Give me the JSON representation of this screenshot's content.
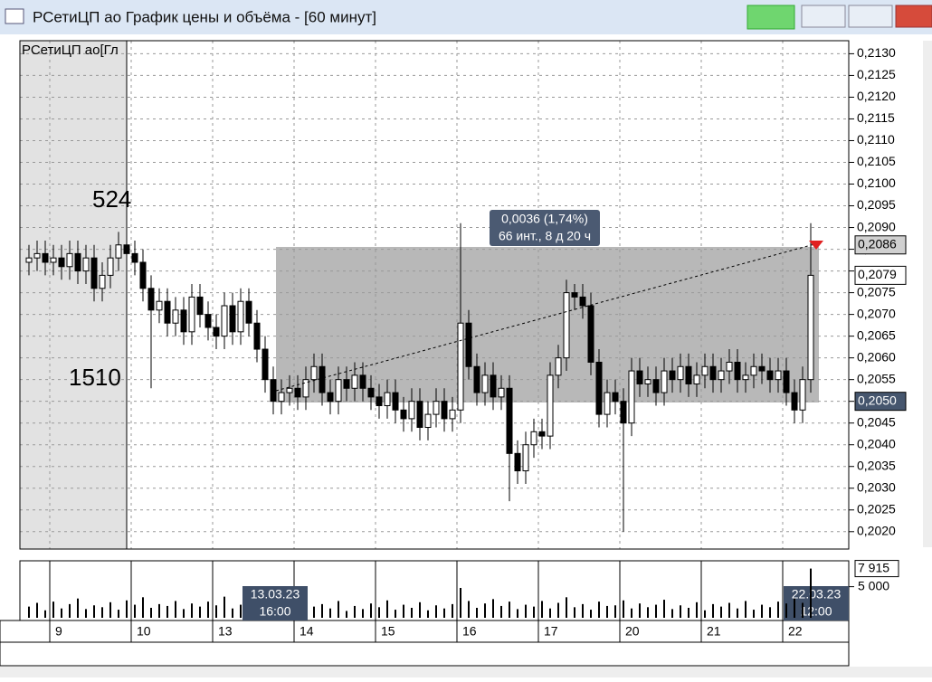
{
  "window": {
    "title": "РСетиЦП ао График цены и объёма - [60 минут]"
  },
  "chart_data": {
    "type": "candlestick",
    "legend": "РСетиЦП ао[Гл",
    "categories": [
      null,
      null,
      null,
      "9",
      null,
      null,
      null,
      null,
      null,
      null,
      null,
      null,
      null,
      "10",
      null,
      null,
      null,
      null,
      null,
      null,
      null,
      null,
      null,
      "13",
      null,
      null,
      null,
      null,
      null,
      null,
      null,
      null,
      null,
      "14",
      null,
      null,
      null,
      null,
      null,
      null,
      null,
      null,
      null,
      "15",
      null,
      null,
      null,
      null,
      null,
      null,
      null,
      null,
      null,
      "16",
      null,
      null,
      null,
      null,
      null,
      null,
      null,
      null,
      null,
      "17",
      null,
      null,
      null,
      null,
      null,
      null,
      null,
      null,
      null,
      "20",
      null,
      null,
      null,
      null,
      null,
      null,
      null,
      null,
      null,
      "21",
      null,
      null,
      null,
      null,
      null,
      null,
      null,
      null,
      null,
      "22",
      null,
      null,
      null
    ],
    "open": [
      0.2082,
      0.2083,
      0.2084,
      0.2082,
      0.2083,
      0.2081,
      0.2084,
      0.208,
      0.2083,
      0.2076,
      0.2079,
      0.2083,
      0.2086,
      0.2084,
      0.2082,
      0.2076,
      0.2071,
      0.2073,
      0.2068,
      0.2071,
      0.2066,
      0.2074,
      0.207,
      0.2067,
      0.2065,
      0.2072,
      0.2066,
      0.2073,
      0.2068,
      0.2062,
      0.2055,
      0.205,
      0.2052,
      0.2053,
      0.2051,
      0.2055,
      0.2058,
      0.2052,
      0.205,
      0.2055,
      0.2053,
      0.2056,
      0.2053,
      0.2051,
      0.2049,
      0.2052,
      0.2048,
      0.2046,
      0.205,
      0.2044,
      0.2047,
      0.205,
      0.2046,
      0.2048,
      0.2068,
      0.2058,
      0.2052,
      0.2056,
      0.2051,
      0.2053,
      0.2038,
      0.2034,
      0.204,
      0.2043,
      0.2042,
      0.2056,
      0.206,
      0.2075,
      0.2074,
      0.2072,
      0.2059,
      0.2047,
      0.2052,
      0.205,
      0.2045,
      0.2057,
      0.2054,
      0.2055,
      0.2052,
      0.2057,
      0.2055,
      0.2058,
      0.2054,
      0.2056,
      0.2058,
      0.2055,
      0.2057,
      0.2059,
      0.2055,
      0.2056,
      0.2058,
      0.2057,
      0.2055,
      0.2057,
      0.2052,
      0.2048,
      0.2055
    ],
    "high": [
      0.2086,
      0.2087,
      0.2087,
      0.2086,
      0.2086,
      0.2087,
      0.2087,
      0.2086,
      0.2086,
      0.2082,
      0.2086,
      0.2089,
      0.2089,
      0.2087,
      0.2085,
      0.2079,
      0.2076,
      0.2076,
      0.2074,
      0.2074,
      0.2077,
      0.2077,
      0.2073,
      0.207,
      0.2075,
      0.2075,
      0.2076,
      0.2076,
      0.2071,
      0.2065,
      0.2058,
      0.2055,
      0.2056,
      0.2056,
      0.2058,
      0.2061,
      0.2061,
      0.2055,
      0.2058,
      0.2058,
      0.2059,
      0.2059,
      0.2056,
      0.2054,
      0.2055,
      0.2055,
      0.2051,
      0.2053,
      0.2053,
      0.205,
      0.2053,
      0.2053,
      0.2051,
      0.2091,
      0.2071,
      0.2061,
      0.2059,
      0.2059,
      0.2056,
      0.2056,
      0.2041,
      0.2043,
      0.2046,
      0.2046,
      0.2059,
      0.2063,
      0.2078,
      0.2077,
      0.2077,
      0.2075,
      0.2062,
      0.2055,
      0.2055,
      0.2053,
      0.206,
      0.206,
      0.2058,
      0.2058,
      0.206,
      0.206,
      0.2061,
      0.2061,
      0.2059,
      0.2061,
      0.2061,
      0.206,
      0.2062,
      0.2062,
      0.2059,
      0.2061,
      0.2061,
      0.206,
      0.206,
      0.206,
      0.2055,
      0.2058,
      0.2091
    ],
    "low": [
      0.2079,
      0.208,
      0.2079,
      0.2079,
      0.2078,
      0.2078,
      0.2077,
      0.2077,
      0.2073,
      0.2073,
      0.2076,
      0.208,
      0.2081,
      0.2079,
      0.2073,
      0.2053,
      0.2068,
      0.2065,
      0.2065,
      0.2063,
      0.2063,
      0.2067,
      0.2064,
      0.2062,
      0.2062,
      0.2063,
      0.2063,
      0.2065,
      0.2059,
      0.2052,
      0.2047,
      0.2047,
      0.2049,
      0.2048,
      0.2048,
      0.2052,
      0.2049,
      0.2047,
      0.2047,
      0.205,
      0.205,
      0.205,
      0.2048,
      0.2046,
      0.2046,
      0.2045,
      0.2043,
      0.2043,
      0.2041,
      0.2041,
      0.2044,
      0.2043,
      0.2043,
      0.2045,
      0.2055,
      0.2049,
      0.2049,
      0.2048,
      0.2048,
      0.2027,
      0.2031,
      0.2031,
      0.2037,
      0.2039,
      0.2039,
      0.2053,
      0.2057,
      0.2071,
      0.2069,
      0.2056,
      0.2044,
      0.2044,
      0.2047,
      0.202,
      0.2042,
      0.2051,
      0.2051,
      0.2049,
      0.2049,
      0.2052,
      0.2052,
      0.2051,
      0.2051,
      0.2053,
      0.2052,
      0.2052,
      0.2054,
      0.2052,
      0.2052,
      0.2053,
      0.2054,
      0.2052,
      0.2052,
      0.2049,
      0.2045,
      0.2045,
      0.2052
    ],
    "close": [
      0.2083,
      0.2084,
      0.2082,
      0.2083,
      0.2081,
      0.2084,
      0.208,
      0.2083,
      0.2076,
      0.2079,
      0.2083,
      0.2086,
      0.2084,
      0.2082,
      0.2076,
      0.2071,
      0.2073,
      0.2068,
      0.2071,
      0.2066,
      0.2074,
      0.207,
      0.2067,
      0.2065,
      0.2072,
      0.2066,
      0.2073,
      0.2068,
      0.2062,
      0.2055,
      0.205,
      0.2052,
      0.2053,
      0.2051,
      0.2055,
      0.2058,
      0.2052,
      0.205,
      0.2055,
      0.2053,
      0.2056,
      0.2053,
      0.2051,
      0.2049,
      0.2052,
      0.2048,
      0.2046,
      0.205,
      0.2044,
      0.2047,
      0.205,
      0.2046,
      0.2048,
      0.2068,
      0.2058,
      0.2052,
      0.2056,
      0.2051,
      0.2053,
      0.2038,
      0.2034,
      0.204,
      0.2043,
      0.2042,
      0.2056,
      0.206,
      0.2075,
      0.2074,
      0.2072,
      0.2059,
      0.2047,
      0.2052,
      0.205,
      0.2045,
      0.2057,
      0.2054,
      0.2055,
      0.2052,
      0.2057,
      0.2055,
      0.2058,
      0.2054,
      0.2056,
      0.2058,
      0.2055,
      0.2057,
      0.2059,
      0.2055,
      0.2056,
      0.2058,
      0.2057,
      0.2055,
      0.2057,
      0.2052,
      0.2048,
      0.2055,
      0.2079
    ],
    "ylim": [
      0.2016,
      0.2133
    ],
    "yticks": [
      {
        "value": 0.213,
        "label": "0,2130"
      },
      {
        "value": 0.2125,
        "label": "0,2125"
      },
      {
        "value": 0.212,
        "label": "0,2120"
      },
      {
        "value": 0.2115,
        "label": "0,2115"
      },
      {
        "value": 0.211,
        "label": "0,2110"
      },
      {
        "value": 0.2105,
        "label": "0,2105"
      },
      {
        "value": 0.21,
        "label": "0,2100"
      },
      {
        "value": 0.2095,
        "label": "0,2095"
      },
      {
        "value": 0.209,
        "label": "0,2090"
      },
      {
        "value": 0.2085,
        "label": "0,2085"
      },
      {
        "value": 0.208,
        "label": "0,2080"
      },
      {
        "value": 0.2075,
        "label": "0,2075"
      },
      {
        "value": 0.207,
        "label": "0,2070"
      },
      {
        "value": 0.2065,
        "label": "0,2065"
      },
      {
        "value": 0.206,
        "label": "0,2060"
      },
      {
        "value": 0.2055,
        "label": "0,2055"
      },
      {
        "value": 0.205,
        "label": "0,2050"
      },
      {
        "value": 0.2045,
        "label": "0,2045"
      },
      {
        "value": 0.204,
        "label": "0,2040"
      },
      {
        "value": 0.2035,
        "label": "0,2035"
      },
      {
        "value": 0.203,
        "label": "0,2030"
      },
      {
        "value": 0.2025,
        "label": "0,2025"
      },
      {
        "value": 0.202,
        "label": "0,2020"
      }
    ],
    "grid": true,
    "price_labels": [
      {
        "value": 0.2086,
        "label": "0,2086",
        "color": "#d0d0d0"
      },
      {
        "value": 0.2079,
        "label": "0,2079",
        "color": "#ffffff"
      },
      {
        "value": 0.205,
        "label": "0,2050",
        "color": "#46566e"
      }
    ],
    "annotation": [
      "0,0036 (1,74%)",
      "66 инт., 8 д 20 ч"
    ],
    "profile_labels": [
      "524",
      "1510"
    ],
    "cursor_labels": [
      [
        "13.03.23",
        "16:00"
      ],
      [
        "22.03.23",
        "12:00"
      ]
    ],
    "volume": {
      "values": [
        1800,
        2400,
        1200,
        2600,
        1500,
        2200,
        3100,
        1400,
        2000,
        1700,
        2500,
        1300,
        2800,
        2100,
        3300,
        1600,
        2200,
        1900,
        2700,
        1400,
        2300,
        1800,
        2600,
        2000,
        3400,
        1500,
        2100,
        1700,
        2900,
        1200,
        2400,
        1600,
        2000,
        1300,
        2500,
        1800,
        2200,
        1500,
        2700,
        1100,
        1900,
        1400,
        2300,
        1700,
        2800,
        1300,
        2100,
        1600,
        2500,
        1200,
        2000,
        1500,
        2200,
        4800,
        2700,
        1600,
        2300,
        3000,
        1900,
        2600,
        1400,
        2100,
        1800,
        2700,
        1500,
        2400,
        3300,
        1700,
        2200,
        1300,
        2600,
        1900,
        2000,
        2800,
        1500,
        2300,
        1700,
        2100,
        2900,
        1400,
        2000,
        1600,
        2500,
        1200,
        2200,
        1800,
        2400,
        1500,
        2700,
        1300,
        2100,
        1700,
        2600,
        2300,
        3100,
        2400,
        7915
      ],
      "ylim": [
        0,
        8000
      ],
      "yticks": [
        {
          "value": 5000,
          "label": "5 000"
        }
      ],
      "last_label": {
        "value": 7915,
        "label": "7 915"
      }
    }
  }
}
